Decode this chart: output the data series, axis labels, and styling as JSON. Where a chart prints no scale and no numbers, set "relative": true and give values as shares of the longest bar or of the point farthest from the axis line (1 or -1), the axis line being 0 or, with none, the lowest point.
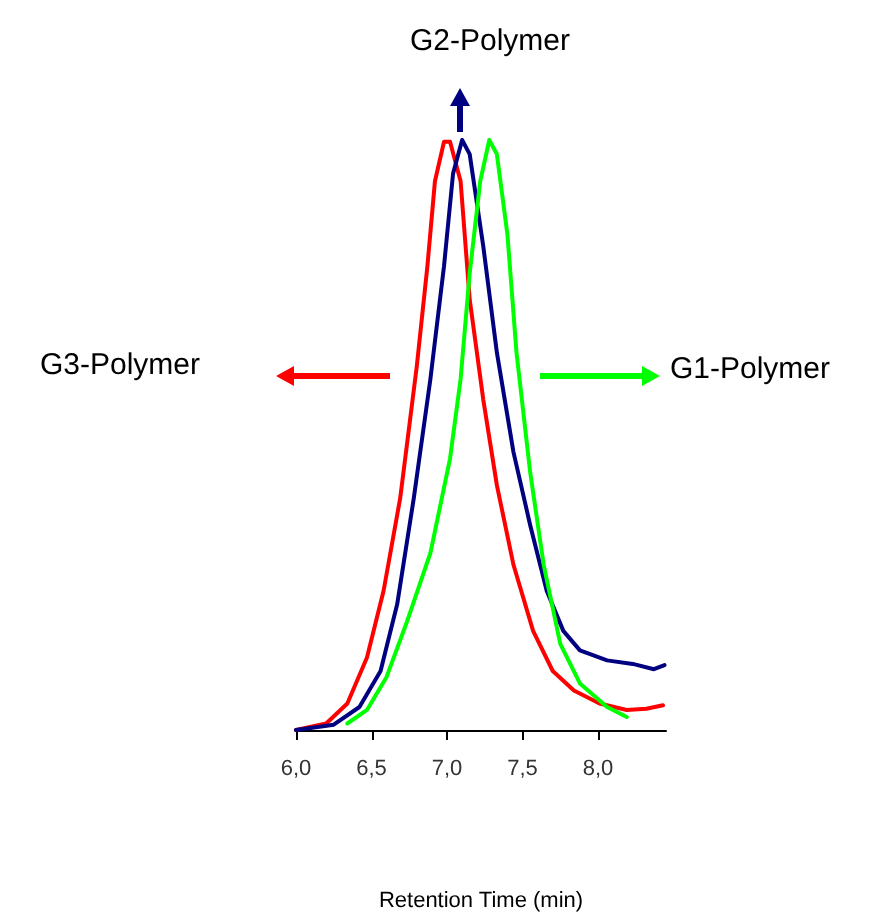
{
  "chart_data": {
    "type": "line",
    "relative": true,
    "xlabel": "Retention Time (min)",
    "xlim": [
      6.0,
      8.45
    ],
    "xticks": [
      {
        "value": 6,
        "label": "6,0"
      },
      {
        "value": 6.5,
        "label": "6,5"
      },
      {
        "value": 7,
        "label": "7,0"
      },
      {
        "value": 7.5,
        "label": "7,5"
      },
      {
        "value": 8,
        "label": "8,0"
      }
    ],
    "annotations": [
      "G3-Polymer",
      "G2-Polymer",
      "G1-Polymer"
    ],
    "grid": false,
    "marker": "none",
    "line_style": "solid",
    "series": [
      {
        "color": "#ff0000",
        "x": [
          6.0,
          6.2,
          6.34,
          6.47,
          6.58,
          6.69,
          6.8,
          6.87,
          6.92,
          6.98,
          7.02,
          7.09,
          7.15,
          7.24,
          7.33,
          7.44,
          7.57,
          7.7,
          7.84,
          8.01,
          8.19,
          8.32,
          8.43
        ],
        "values": [
          0,
          0.011,
          0.045,
          0.123,
          0.236,
          0.393,
          0.617,
          0.786,
          0.93,
          0.997,
          0.997,
          0.93,
          0.73,
          0.56,
          0.415,
          0.28,
          0.168,
          0.1,
          0.067,
          0.045,
          0.034,
          0.036,
          0.042
        ]
      },
      {
        "color": "#000080",
        "x": [
          6.0,
          6.25,
          6.42,
          6.56,
          6.67,
          6.78,
          6.89,
          6.98,
          7.04,
          7.1,
          7.15,
          7.24,
          7.33,
          7.44,
          7.55,
          7.66,
          7.77,
          7.88,
          8.06,
          8.23,
          8.37,
          8.44
        ],
        "values": [
          0,
          0.009,
          0.039,
          0.1,
          0.213,
          0.393,
          0.595,
          0.786,
          0.943,
          1.0,
          0.976,
          0.82,
          0.64,
          0.471,
          0.348,
          0.236,
          0.168,
          0.135,
          0.118,
          0.112,
          0.103,
          0.11
        ]
      },
      {
        "color": "#00ff00",
        "x": [
          6.34,
          6.47,
          6.6,
          6.73,
          6.89,
          7.02,
          7.09,
          7.15,
          7.22,
          7.28,
          7.33,
          7.4,
          7.46,
          7.55,
          7.64,
          7.75,
          7.88,
          8.06,
          8.19
        ],
        "values": [
          0.011,
          0.034,
          0.09,
          0.18,
          0.3,
          0.46,
          0.595,
          0.774,
          0.93,
          1.0,
          0.976,
          0.84,
          0.64,
          0.438,
          0.28,
          0.146,
          0.079,
          0.039,
          0.022
        ]
      }
    ]
  }
}
